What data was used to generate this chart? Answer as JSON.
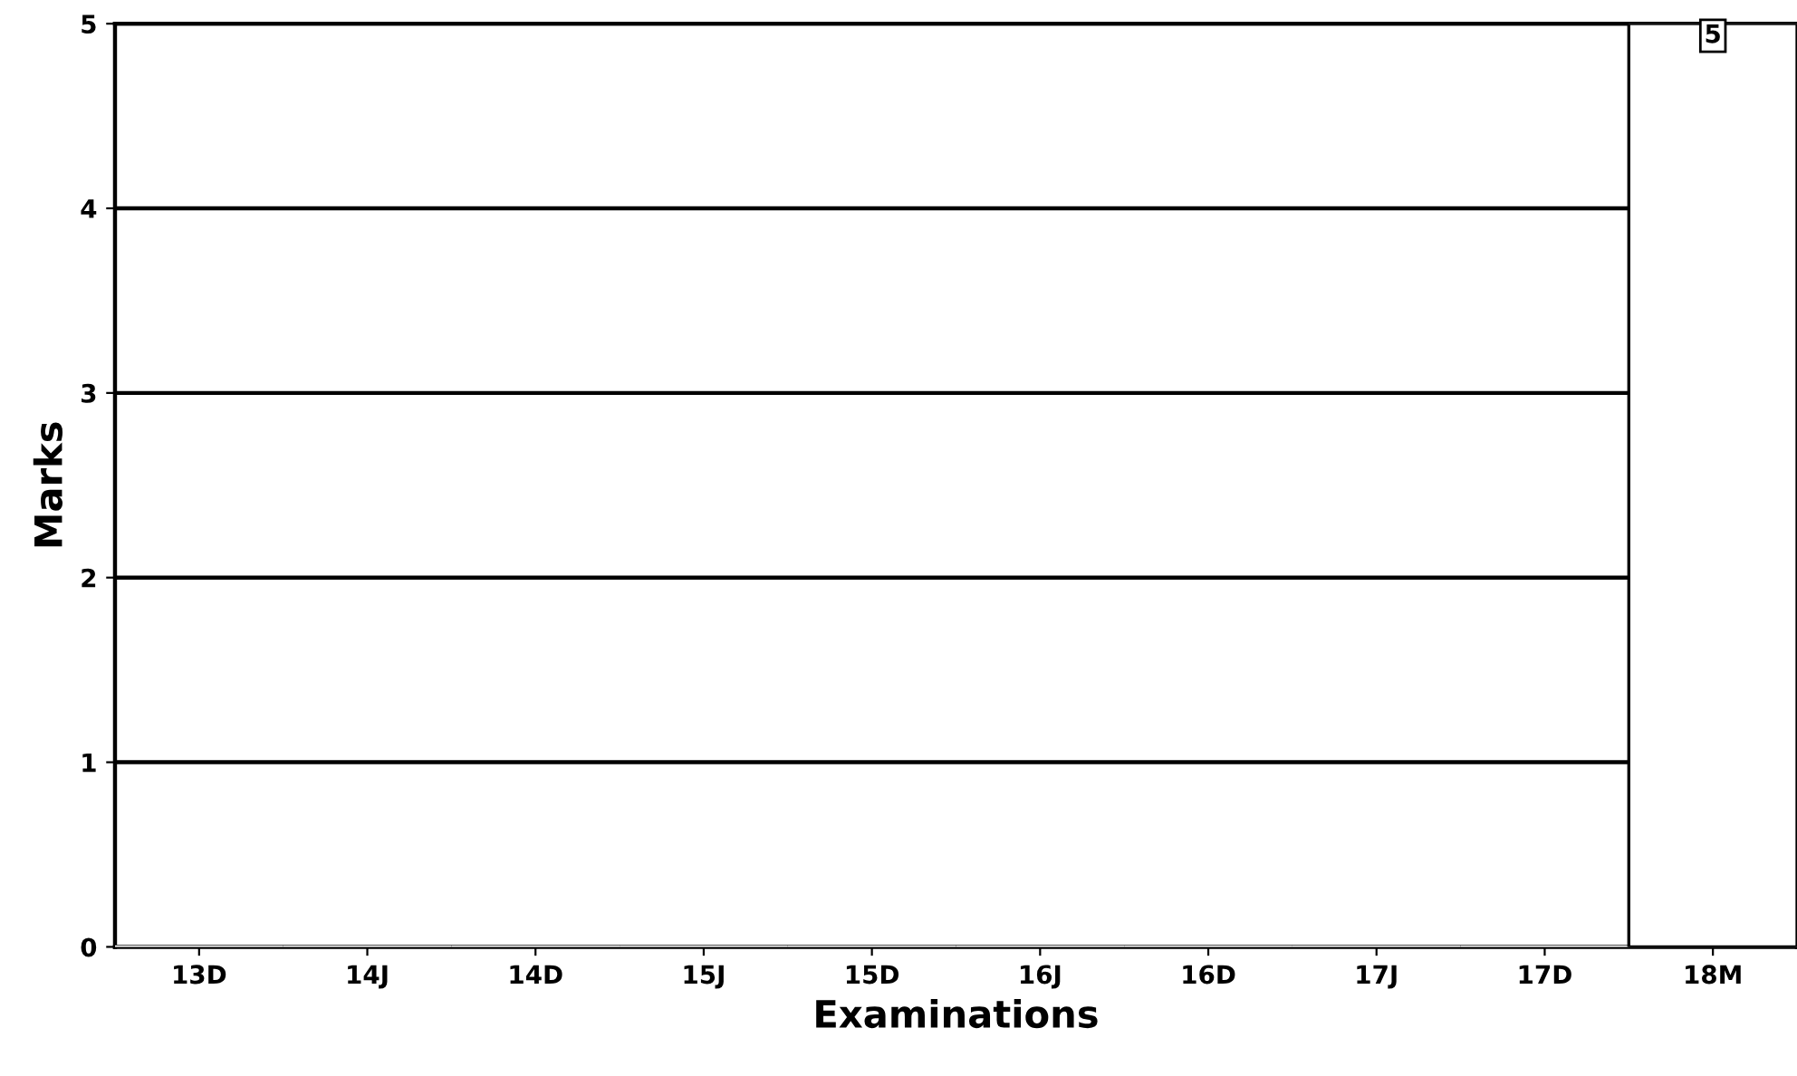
{
  "chart_data": {
    "type": "bar",
    "xlabel": "Examinations",
    "ylabel": "Marks",
    "categories": [
      "13D",
      "14J",
      "14D",
      "15J",
      "15D",
      "16J",
      "16D",
      "17J",
      "17D",
      "18M"
    ],
    "values": [
      0,
      0,
      0,
      0,
      0,
      0,
      0,
      0,
      0,
      5
    ],
    "value_labels": [
      null,
      null,
      null,
      null,
      null,
      null,
      null,
      null,
      null,
      "5"
    ],
    "color": "#ffffff",
    "ylim": [
      0,
      5
    ],
    "yticks": [
      0,
      1,
      2,
      3,
      4,
      5
    ],
    "grid": "y"
  }
}
